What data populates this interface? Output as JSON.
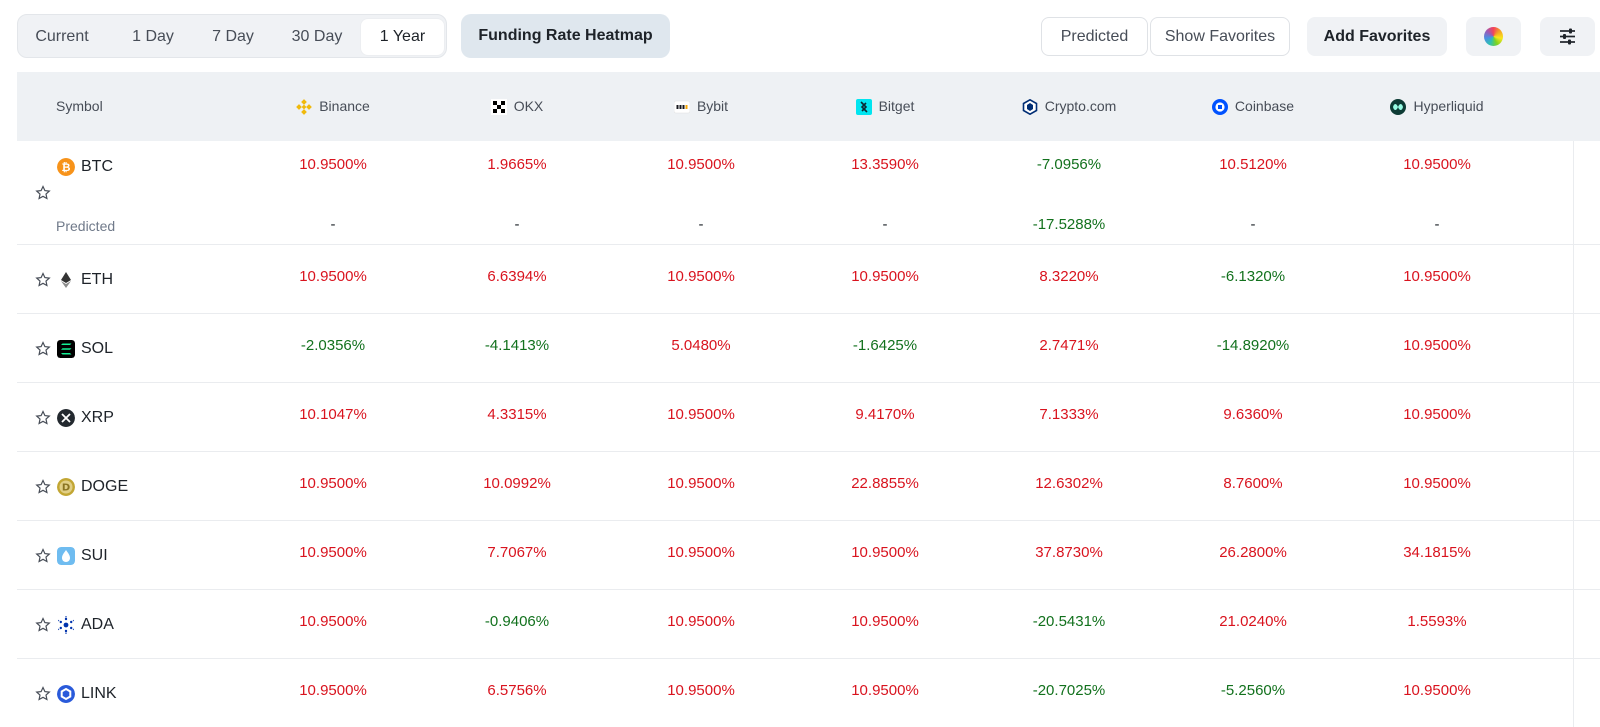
{
  "toolbar": {
    "periods": [
      "Current",
      "1 Day",
      "7 Day",
      "30 Day",
      "1 Year"
    ],
    "active_period": "1 Year",
    "heatmap_label": "Funding Rate Heatmap",
    "predicted_label": "Predicted",
    "show_favorites_label": "Show Favorites",
    "add_favorites_label": "Add Favorites",
    "color_icon": "color-wheel-icon",
    "settings_icon": "sliders-icon"
  },
  "table": {
    "symbol_header": "Symbol",
    "exchanges": [
      {
        "name": "Binance",
        "icon": "binance-icon",
        "color": "#f0b90b"
      },
      {
        "name": "OKX",
        "icon": "okx-icon",
        "color": "#000000"
      },
      {
        "name": "Bybit",
        "icon": "bybit-icon",
        "color": "#17181e"
      },
      {
        "name": "Bitget",
        "icon": "bitget-icon",
        "color": "#00f0ff"
      },
      {
        "name": "Crypto.com",
        "icon": "crypto-com-icon",
        "color": "#002d74"
      },
      {
        "name": "Coinbase",
        "icon": "coinbase-icon",
        "color": "#0052ff"
      },
      {
        "name": "Hyperliquid",
        "icon": "hyperliquid-icon",
        "color": "#0d3b35"
      }
    ],
    "predicted_label": "Predicted",
    "rows": [
      {
        "symbol": "BTC",
        "icon": "btc-icon",
        "values": [
          "10.9500%",
          "1.9665%",
          "10.9500%",
          "13.3590%",
          "-7.0956%",
          "10.5120%",
          "10.9500%"
        ],
        "predicted": [
          "-",
          "-",
          "-",
          "-",
          "-17.5288%",
          "-",
          "-"
        ]
      },
      {
        "symbol": "ETH",
        "icon": "eth-icon",
        "values": [
          "10.9500%",
          "6.6394%",
          "10.9500%",
          "10.9500%",
          "8.3220%",
          "-6.1320%",
          "10.9500%"
        ]
      },
      {
        "symbol": "SOL",
        "icon": "sol-icon",
        "values": [
          "-2.0356%",
          "-4.1413%",
          "5.0480%",
          "-1.6425%",
          "2.7471%",
          "-14.8920%",
          "10.9500%"
        ]
      },
      {
        "symbol": "XRP",
        "icon": "xrp-icon",
        "values": [
          "10.1047%",
          "4.3315%",
          "10.9500%",
          "9.4170%",
          "7.1333%",
          "9.6360%",
          "10.9500%"
        ]
      },
      {
        "symbol": "DOGE",
        "icon": "doge-icon",
        "values": [
          "10.9500%",
          "10.0992%",
          "10.9500%",
          "22.8855%",
          "12.6302%",
          "8.7600%",
          "10.9500%"
        ]
      },
      {
        "symbol": "SUI",
        "icon": "sui-icon",
        "values": [
          "10.9500%",
          "7.7067%",
          "10.9500%",
          "10.9500%",
          "37.8730%",
          "26.2800%",
          "34.1815%"
        ]
      },
      {
        "symbol": "ADA",
        "icon": "ada-icon",
        "values": [
          "10.9500%",
          "-0.9406%",
          "10.9500%",
          "10.9500%",
          "-20.5431%",
          "21.0240%",
          "1.5593%"
        ]
      },
      {
        "symbol": "LINK",
        "icon": "link-icon",
        "values": [
          "10.9500%",
          "6.5756%",
          "10.9500%",
          "10.9500%",
          "-20.7025%",
          "-5.2560%",
          "10.9500%"
        ]
      }
    ]
  },
  "colors": {
    "positive": "#d9131e",
    "negative": "#12711d",
    "header_bg": "#eef1f4"
  }
}
